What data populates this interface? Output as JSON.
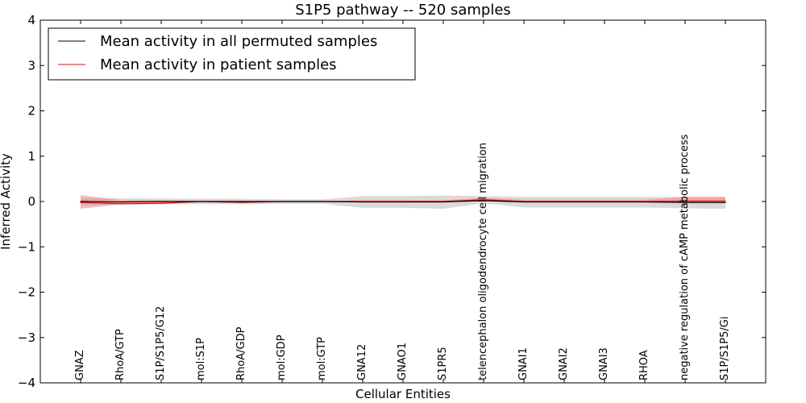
{
  "chart_data": {
    "type": "line",
    "title": "S1P5 pathway -- 520 samples",
    "xlabel": "Cellular Entities",
    "ylabel": "Inferred Activity",
    "ylim": [
      -4,
      4
    ],
    "yticks": [
      "4",
      "3",
      "2",
      "1",
      "0",
      "−1",
      "−2",
      "−3",
      "−4"
    ],
    "ytick_values": [
      4,
      3,
      2,
      1,
      0,
      -1,
      -2,
      -3,
      -4
    ],
    "grid": false,
    "legend_position": "top-left",
    "categories": [
      "GNAZ",
      "RhoA/GTP",
      "S1P/S1P5/G12",
      "mol:S1P",
      "RhoA/GDP",
      "mol:GDP",
      "mol:GTP",
      "GNA12",
      "GNAO1",
      "S1PR5",
      "telencephalon oligodendrocyte cell migration",
      "GNAI1",
      "GNAI2",
      "GNAI3",
      "RHOA",
      "negative regulation of cAMP metabolic process",
      "S1P/S1P5/Gi"
    ],
    "series": [
      {
        "name": "Mean activity in all permuted samples",
        "color": "#000000",
        "values": [
          0.0,
          -0.01,
          0.0,
          0.0,
          0.0,
          0.0,
          0.0,
          -0.01,
          -0.01,
          -0.01,
          0.02,
          -0.01,
          -0.01,
          -0.01,
          -0.01,
          -0.02,
          -0.02
        ],
        "band_low": [
          -0.08,
          -0.07,
          -0.06,
          -0.06,
          -0.06,
          -0.05,
          -0.05,
          -0.14,
          -0.14,
          -0.16,
          -0.04,
          -0.13,
          -0.13,
          -0.13,
          -0.13,
          -0.15,
          -0.16
        ],
        "band_high": [
          0.08,
          0.07,
          0.07,
          0.06,
          0.06,
          0.05,
          0.05,
          0.12,
          0.12,
          0.13,
          0.12,
          0.1,
          0.1,
          0.1,
          0.1,
          0.1,
          0.1
        ],
        "band_color": "#bbbbbb"
      },
      {
        "name": "Mean activity in patient samples",
        "color": "#ff0000",
        "values": [
          -0.02,
          -0.05,
          -0.04,
          0.0,
          -0.02,
          0.0,
          0.0,
          0.0,
          0.0,
          0.0,
          0.04,
          0.0,
          0.0,
          0.0,
          0.0,
          0.01,
          0.01
        ],
        "band_low": [
          -0.16,
          -0.06,
          -0.05,
          -0.01,
          -0.03,
          -0.01,
          -0.01,
          -0.02,
          -0.02,
          -0.02,
          0.02,
          -0.02,
          -0.02,
          -0.02,
          -0.02,
          -0.04,
          -0.04
        ],
        "band_high": [
          0.14,
          0.03,
          0.02,
          0.01,
          0.0,
          0.01,
          0.01,
          0.03,
          0.03,
          0.03,
          0.08,
          0.04,
          0.04,
          0.04,
          0.04,
          0.1,
          0.1
        ],
        "band_color": "#e87b7b"
      }
    ]
  }
}
